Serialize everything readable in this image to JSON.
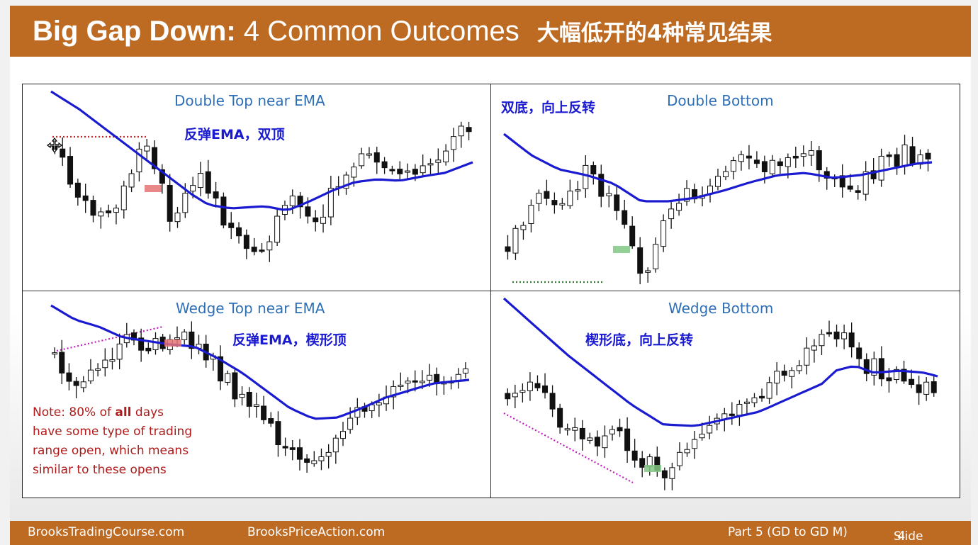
{
  "slide": {
    "title_bold": "Big Gap Down:",
    "title_rest": "4 Common Outcomes",
    "title_cn": "大幅低开的4种常见结果",
    "accent_color": "#bd6a22"
  },
  "footer": {
    "left": "BrooksTradingCourse.com",
    "center": "BrooksPriceAction.com",
    "part": "Part 5 (GD to GD M)",
    "slide_label": "Slide",
    "slide_number": "4"
  },
  "chart_data": [
    {
      "type": "candlestick",
      "title": "Double Top near EMA",
      "annotation_cn": "反弹EMA，双顶",
      "ema_color": "#1a1ad0",
      "marker_color": "#e57373"
    },
    {
      "type": "candlestick",
      "title": "Double Bottom",
      "annotation_cn": "双底，向上反转",
      "ema_color": "#1a1ad0",
      "marker_color": "#81c784"
    },
    {
      "type": "candlestick",
      "title": "Wedge Top near EMA",
      "annotation_cn": "反弹EMA，楔形顶",
      "ema_color": "#1a1ad0",
      "marker_color": "#e57373",
      "note": {
        "line1_pre": "Note: 80% of ",
        "line1_bold": "all",
        "line1_post": " days",
        "line2": "have some type of trading",
        "line3": "range open, which means",
        "line4": "similar to these opens"
      }
    },
    {
      "type": "candlestick",
      "title": "Wedge Bottom",
      "annotation_cn": "楔形底，向上反转",
      "ema_color": "#1a1ad0",
      "marker_color": "#81c784"
    }
  ]
}
